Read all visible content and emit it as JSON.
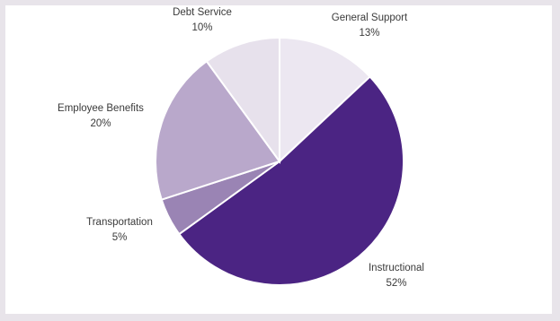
{
  "chart_data": {
    "type": "pie",
    "title": "",
    "slices": [
      {
        "label": "General Support",
        "value": 13,
        "value_label": "13%",
        "color": "#ece7f1"
      },
      {
        "label": "Instructional",
        "value": 52,
        "value_label": "52%",
        "color": "#4b2483"
      },
      {
        "label": "Transportation",
        "value": 5,
        "value_label": "5%",
        "color": "#9a84b4"
      },
      {
        "label": "Employee Benefits",
        "value": 20,
        "value_label": "20%",
        "color": "#b9a8cb"
      },
      {
        "label": "Debt Service",
        "value": 10,
        "value_label": "10%",
        "color": "#e7e1ec"
      }
    ]
  }
}
